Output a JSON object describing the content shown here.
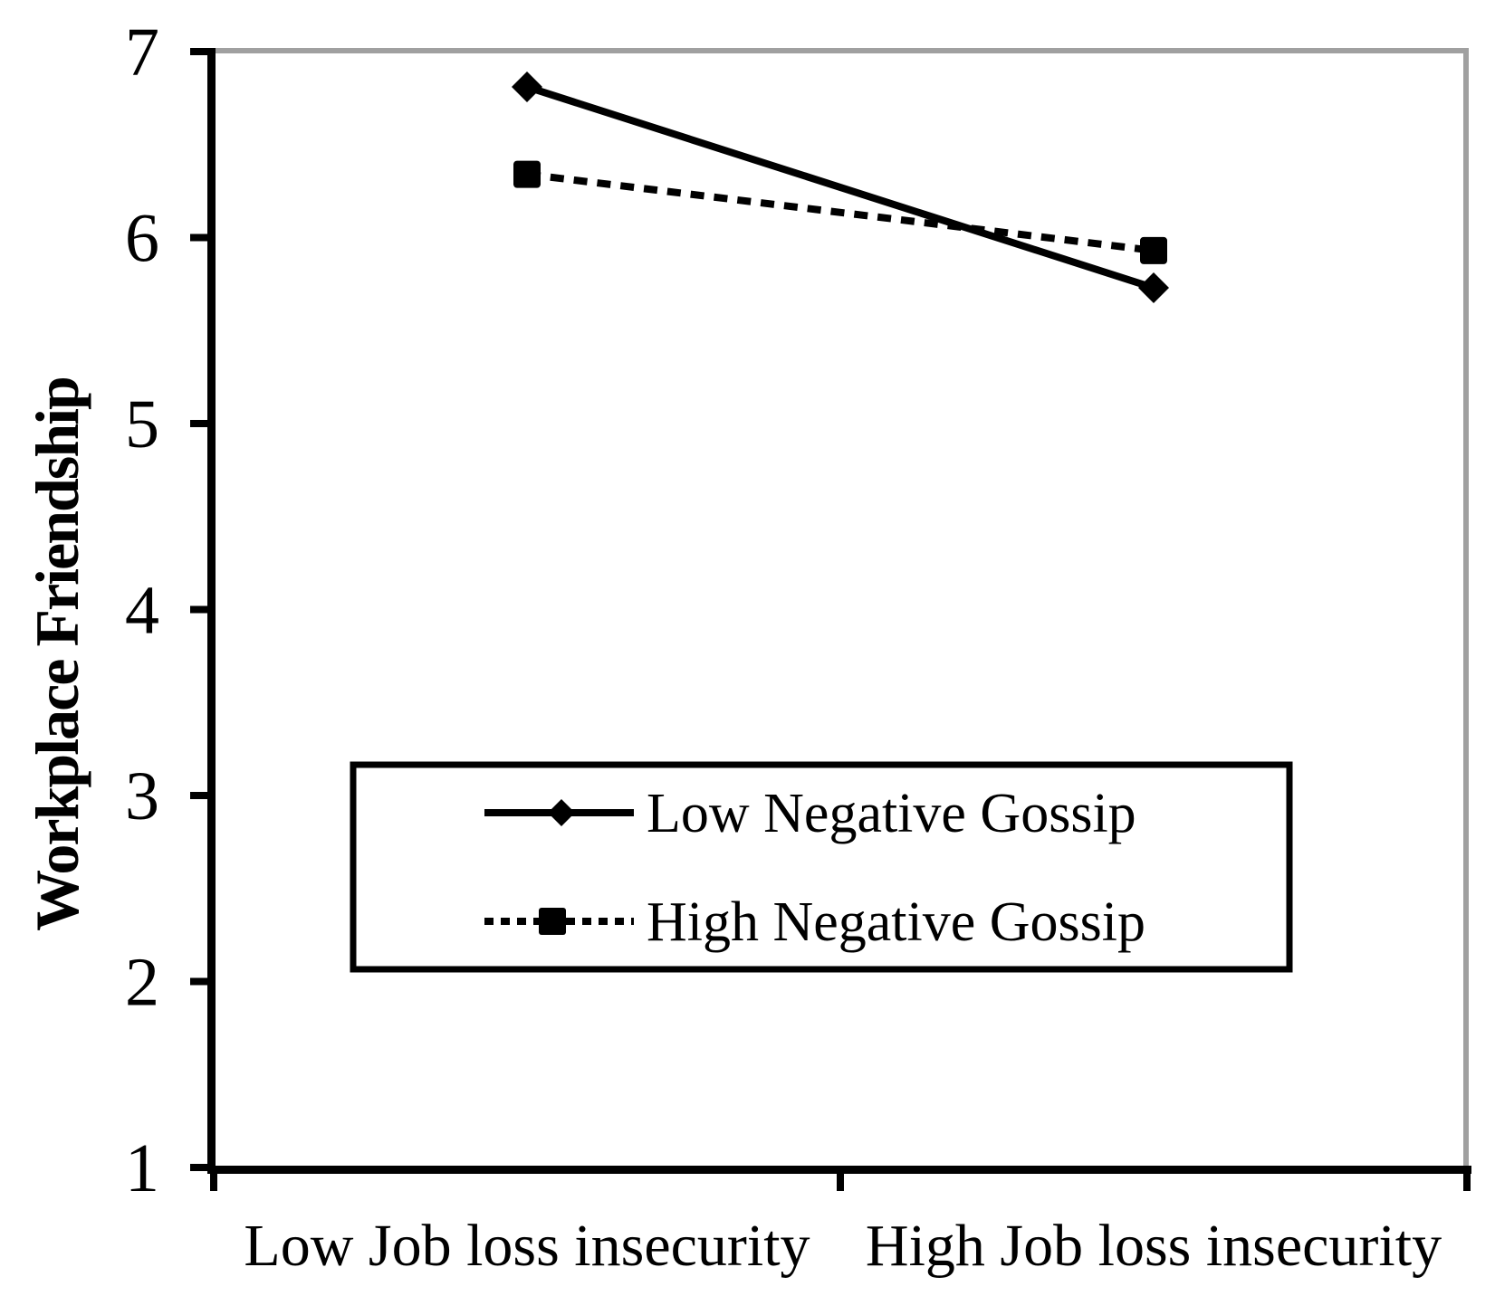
{
  "figure": {
    "background_color": "#ffffff",
    "plot_border_color": "#a0a0a0",
    "axis_color": "#000000"
  },
  "chart_data": {
    "type": "line",
    "title": "",
    "xlabel": "",
    "ylabel": "Workplace Friendship",
    "categories": [
      "Low Job loss insecurity",
      "High Job loss insecurity"
    ],
    "series": [
      {
        "name": "Low Negative Gossip",
        "line_style": "solid",
        "marker": "diamond",
        "color": "#000000",
        "values": [
          6.81,
          5.73
        ]
      },
      {
        "name": "High Negative Gossip",
        "line_style": "dashed",
        "marker": "square",
        "color": "#000000",
        "values": [
          6.34,
          5.93
        ]
      }
    ],
    "ylim": [
      1,
      7
    ],
    "yticks": [
      1,
      2,
      3,
      4,
      5,
      6,
      7
    ],
    "grid": false,
    "legend_position": "inside-bottom-left"
  }
}
